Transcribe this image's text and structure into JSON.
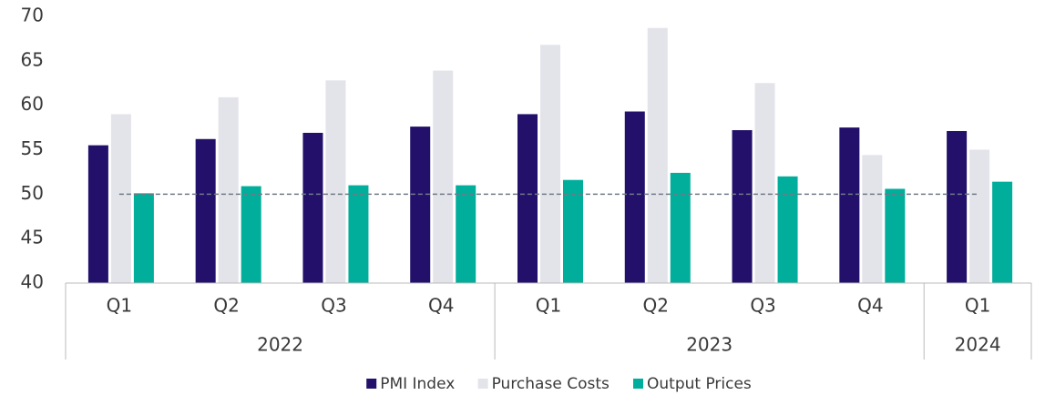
{
  "chart_data": {
    "type": "bar",
    "categories": [
      "Q1",
      "Q2",
      "Q3",
      "Q4",
      "Q1",
      "Q2",
      "Q3",
      "Q4",
      "Q1"
    ],
    "groups": [
      {
        "label": "2022",
        "count": 4
      },
      {
        "label": "2023",
        "count": 4
      },
      {
        "label": "2024",
        "count": 1
      }
    ],
    "series": [
      {
        "name": "PMI Index",
        "color": "#22106b",
        "values": [
          55.5,
          56.2,
          56.9,
          57.6,
          59.0,
          59.3,
          57.2,
          57.5,
          57.1
        ]
      },
      {
        "name": "Purchase Costs",
        "color": "#e3e3ea",
        "values": [
          59.0,
          60.9,
          62.8,
          63.9,
          66.8,
          68.7,
          62.5,
          54.4,
          55.0
        ]
      },
      {
        "name": "Output Prices",
        "color": "#00ae9b",
        "values": [
          50.1,
          50.9,
          51.0,
          51.0,
          51.6,
          52.4,
          52.0,
          50.6,
          51.4
        ]
      }
    ],
    "reference_line": 50,
    "ylim": [
      40,
      70
    ],
    "yticks": [
      40,
      45,
      50,
      55,
      60,
      65,
      70
    ],
    "grid": false,
    "legend": "bottom"
  }
}
